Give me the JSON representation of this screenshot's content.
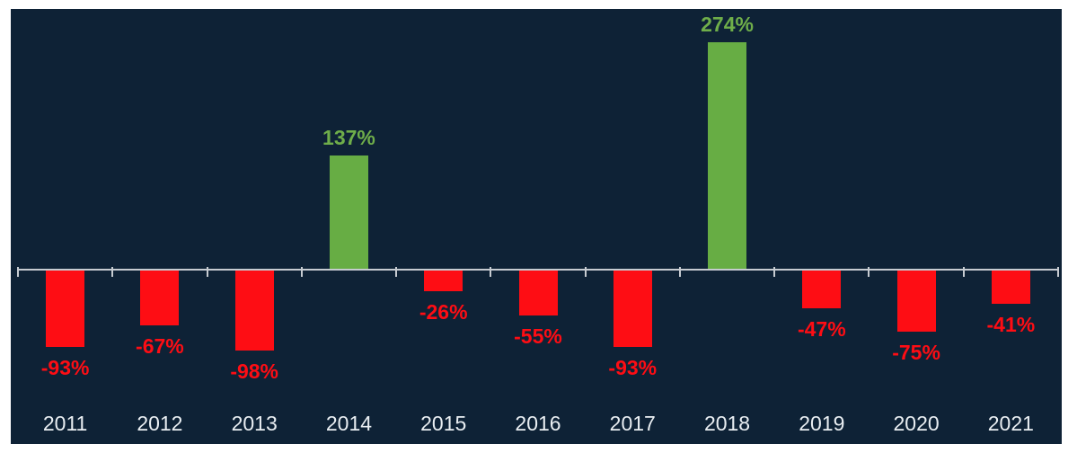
{
  "chart_data": {
    "type": "bar",
    "title": "",
    "xlabel": "",
    "ylabel": "",
    "categories": [
      "2011",
      "2012",
      "2013",
      "2014",
      "2015",
      "2016",
      "2017",
      "2018",
      "2019",
      "2020",
      "2021"
    ],
    "values": [
      -93,
      -67,
      -98,
      137,
      -26,
      -55,
      -93,
      274,
      -47,
      -75,
      -41
    ],
    "labels": [
      "-93%",
      "-67%",
      "-98%",
      "137%",
      "-26%",
      "-55%",
      "-93%",
      "274%",
      "-47%",
      "-75%",
      "-41%"
    ],
    "ylim": [
      -120,
      300
    ],
    "grid": false,
    "legend": false,
    "axis_tick_style": "cross",
    "colors": {
      "positive_bar": "#67ad44",
      "negative_bar": "#fe0d14",
      "positive_label": "#6fae4a",
      "negative_label": "#fe0d14",
      "axis_line": "#c6cbd1",
      "category_label": "#e9eef2",
      "chart_background": "#0e2236",
      "page_background": "#ffffff"
    }
  }
}
